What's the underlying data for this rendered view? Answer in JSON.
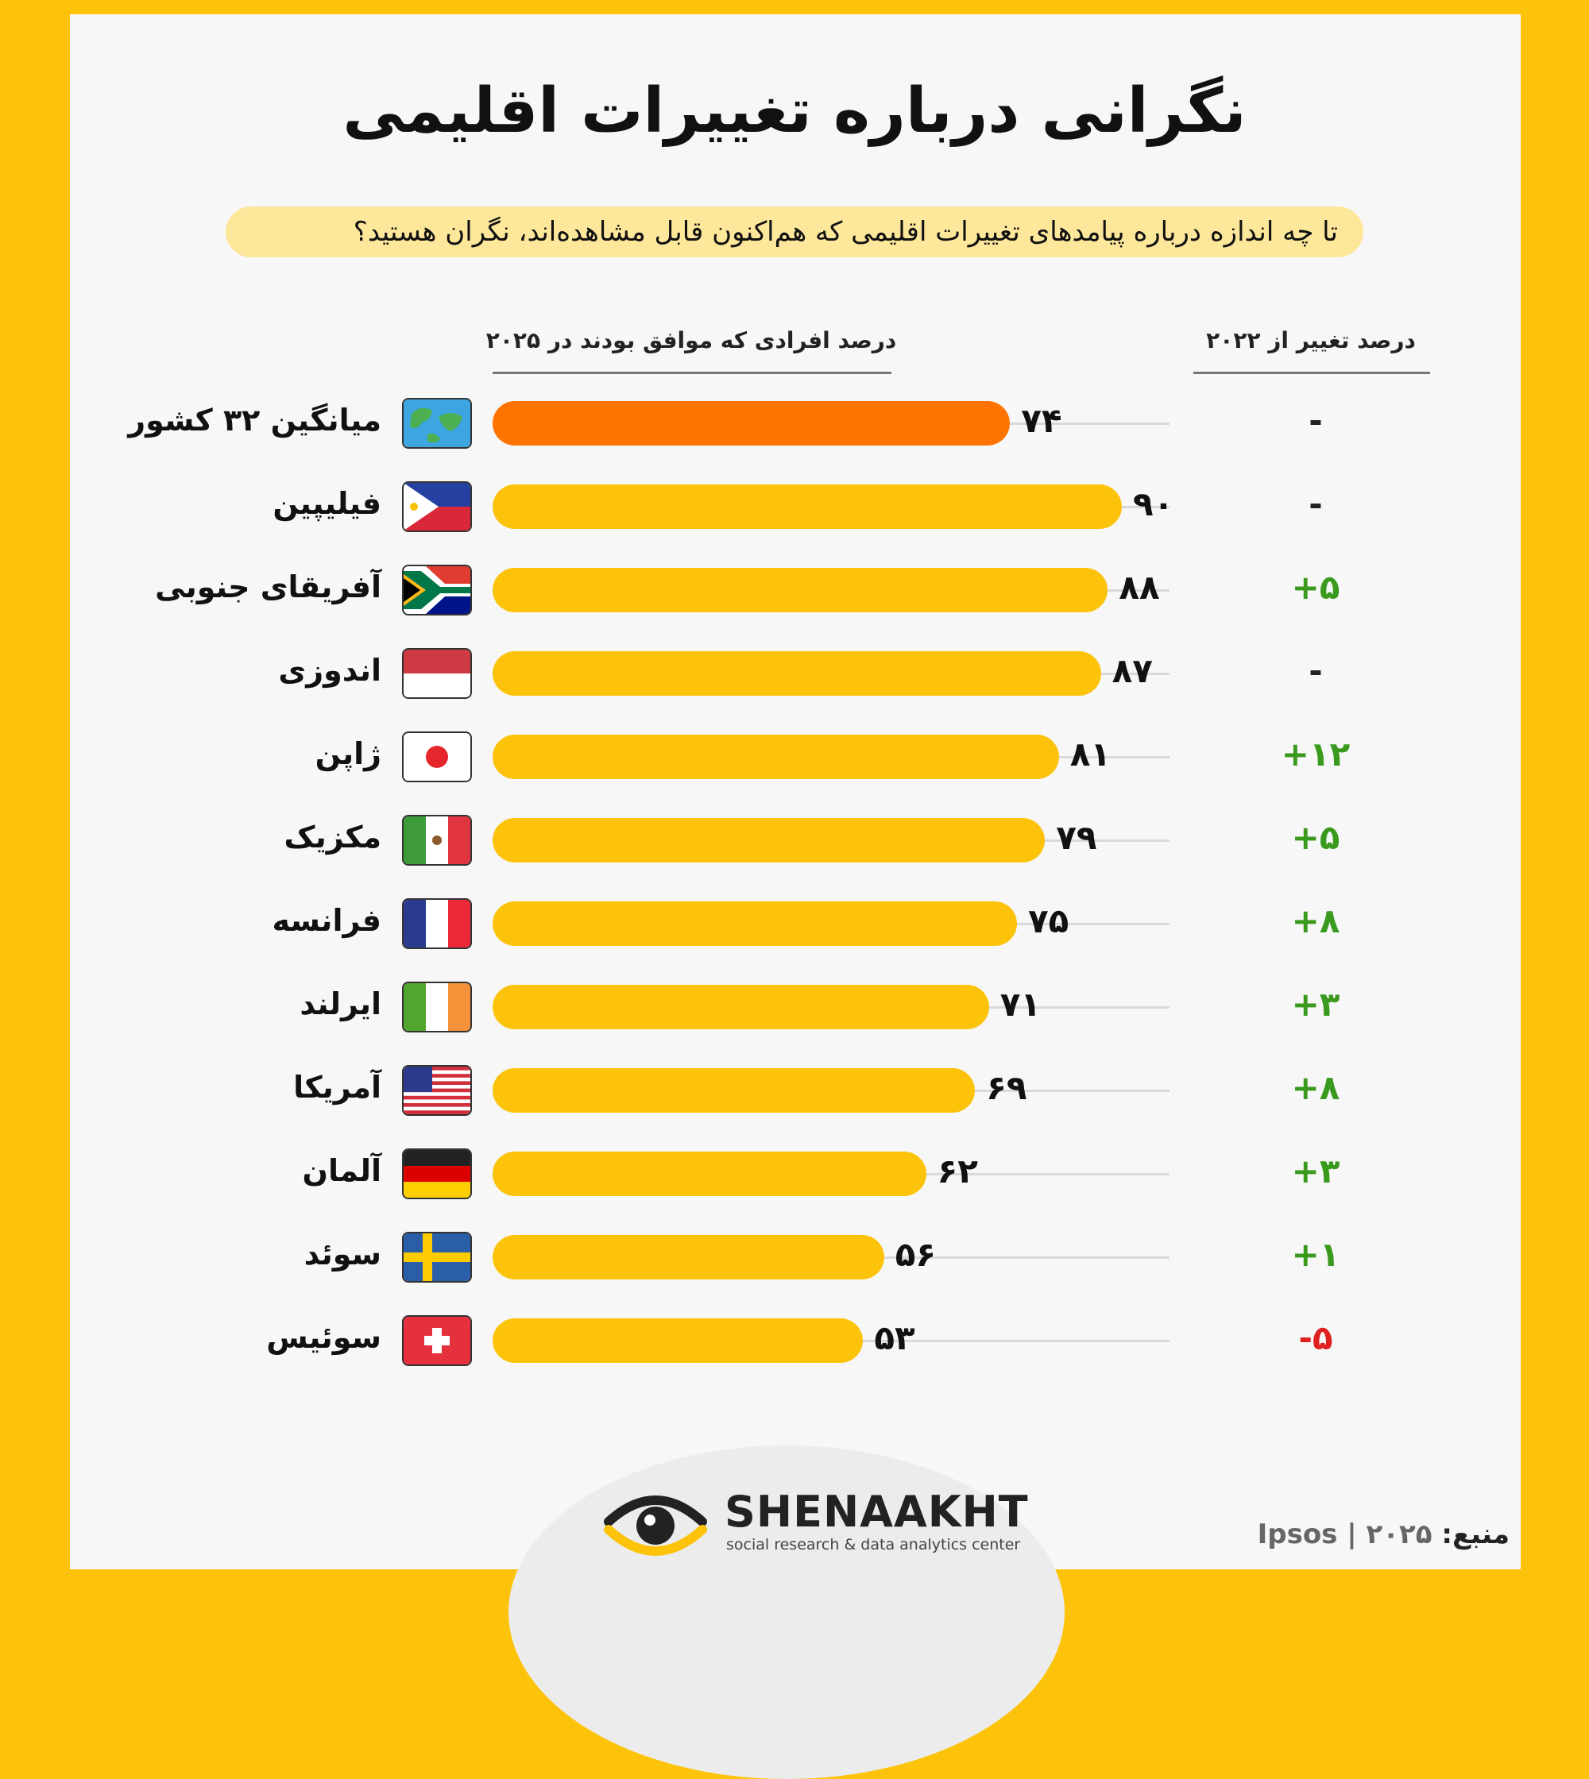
{
  "title": "نگرانی درباره تغییرات اقلیمی",
  "subtitle": "تا چه اندازه درباره پیامدهای تغییرات اقلیمی که هم‌اکنون قابل مشاهده‌اند، نگران هستید؟",
  "colors": {
    "accent": "#fcc30a",
    "average": "#ff7400",
    "positive": "#3a9a1e",
    "negative": "#e02020"
  },
  "chart_data": {
    "type": "bar",
    "orientation": "horizontal",
    "title": "نگرانی درباره تغییرات اقلیمی",
    "value_header": "درصد افرادی که موافق بودند در ۲۰۲۵",
    "change_header": "درصد تغییر از ۲۰۲۲",
    "xlim": [
      0,
      100
    ],
    "rows": [
      {
        "country": "میانگین ۳۲ کشور",
        "flag": "globe-icon",
        "value": 74,
        "label": "۷۴",
        "change": "-",
        "average": true
      },
      {
        "country": "فیلیپین",
        "flag": "philippines-flag-icon",
        "value": 90,
        "label": "۹۰",
        "change": "-"
      },
      {
        "country": "آفریقای جنوبی",
        "flag": "south-africa-flag-icon",
        "value": 88,
        "label": "۸۸",
        "change": "+۵"
      },
      {
        "country": "اندوزی",
        "flag": "indonesia-flag-icon",
        "value": 87,
        "label": "۸۷",
        "change": "-"
      },
      {
        "country": "ژاپن",
        "flag": "japan-flag-icon",
        "value": 81,
        "label": "۸۱",
        "change": "+۱۲"
      },
      {
        "country": "مکزیک",
        "flag": "mexico-flag-icon",
        "value": 79,
        "label": "۷۹",
        "change": "+۵"
      },
      {
        "country": "فرانسه",
        "flag": "france-flag-icon",
        "value": 75,
        "label": "۷۵",
        "change": "+۸"
      },
      {
        "country": "ایرلند",
        "flag": "ireland-flag-icon",
        "value": 71,
        "label": "۷۱",
        "change": "+۳"
      },
      {
        "country": "آمریکا",
        "flag": "usa-flag-icon",
        "value": 69,
        "label": "۶۹",
        "change": "+۸"
      },
      {
        "country": "آلمان",
        "flag": "germany-flag-icon",
        "value": 62,
        "label": "۶۲",
        "change": "+۳"
      },
      {
        "country": "سوئد",
        "flag": "sweden-flag-icon",
        "value": 56,
        "label": "۵۶",
        "change": "+۱"
      },
      {
        "country": "سوئیس",
        "flag": "switzerland-flag-icon",
        "value": 53,
        "label": "۵۳",
        "change": "-۵"
      }
    ]
  },
  "logo": {
    "name": "SHENAAKHT",
    "tagline": "social research & data analytics center"
  },
  "source": {
    "label": "منبع:",
    "text": "Ipsos | ۲۰۲۵"
  }
}
